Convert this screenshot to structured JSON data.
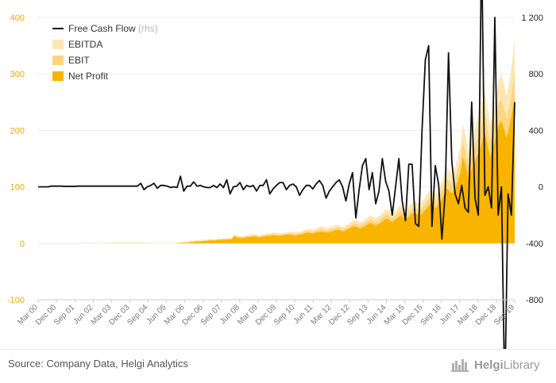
{
  "chart_data": {
    "type": "area",
    "left_axis": {
      "ylim": [
        -100,
        400
      ],
      "ticks": [
        "-100",
        "0",
        "100",
        "200",
        "300",
        "400"
      ]
    },
    "right_axis": {
      "ylim": [
        -800,
        1200
      ],
      "ticks": [
        "-800",
        "-400",
        "0",
        "400",
        "800",
        "1 200"
      ]
    },
    "x_tick_labels": [
      "Mar 00",
      "Dec 00",
      "Sep 01",
      "Jun 02",
      "Mar 03",
      "Dec 03",
      "Sep 04",
      "Jun 05",
      "Mar 06",
      "Dec 06",
      "Sep 07",
      "Jun 08",
      "Mar 09",
      "Dec 09",
      "Sep 10",
      "Jun 11",
      "Mar 12",
      "Dec 12",
      "Sep 13",
      "Jun 14",
      "Mar 15",
      "Dec 15",
      "Sep 16",
      "Jun 17",
      "Mar 18",
      "Dec 18",
      "Sep 19"
    ],
    "legend": [
      {
        "label": "Free Cash Flow",
        "suffix": "(rhs)",
        "type": "line",
        "color": "#111111"
      },
      {
        "label": "EBITDA",
        "type": "area",
        "color": "#fde7b4"
      },
      {
        "label": "EBIT",
        "type": "area",
        "color": "#fcd67f"
      },
      {
        "label": "Net Profit",
        "type": "area",
        "color": "#f9b400"
      }
    ],
    "series": [
      {
        "name": "Free Cash Flow",
        "axis": "right",
        "values": [
          0,
          0,
          0,
          0,
          5,
          5,
          5,
          5,
          3,
          3,
          3,
          3,
          5,
          5,
          5,
          5,
          5,
          5,
          5,
          5,
          5,
          5,
          5,
          5,
          5,
          5,
          5,
          5,
          5,
          5,
          5,
          25,
          -20,
          0,
          10,
          25,
          -10,
          10,
          10,
          5,
          -5,
          0,
          -5,
          75,
          -30,
          5,
          5,
          35,
          5,
          10,
          0,
          -5,
          -5,
          10,
          -5,
          20,
          -5,
          50,
          -50,
          0,
          5,
          30,
          -20,
          10,
          0,
          10,
          -30,
          10,
          10,
          50,
          -50,
          -15,
          10,
          30,
          30,
          -20,
          10,
          20,
          0,
          -60,
          -20,
          10,
          10,
          -15,
          20,
          45,
          10,
          -80,
          -30,
          0,
          30,
          50,
          0,
          -100,
          20,
          100,
          -220,
          -20,
          150,
          200,
          -20,
          100,
          -120,
          -30,
          200,
          40,
          -30,
          -200,
          0,
          200,
          -100,
          -240,
          160,
          160,
          -260,
          -280,
          400,
          900,
          1000,
          -280,
          150,
          20,
          -370,
          -40,
          950,
          180,
          -50,
          -120,
          10,
          -150,
          -180,
          600,
          -80,
          -200,
          1700,
          -60,
          0,
          -150,
          1200,
          -200,
          0,
          -1500,
          -50,
          -200,
          600
        ]
      },
      {
        "name": "EBITDA",
        "axis": "left",
        "values": [
          0,
          0,
          0,
          0,
          0,
          0,
          0,
          0,
          0,
          0,
          0,
          0,
          0,
          0,
          0,
          0,
          0,
          0,
          1,
          1,
          1,
          1,
          1,
          1,
          1,
          1,
          1,
          2,
          2,
          2,
          2,
          2,
          2,
          2,
          2,
          2,
          2,
          2,
          2,
          2,
          1,
          1,
          1,
          1,
          1,
          1,
          1,
          1,
          1,
          1,
          1,
          1,
          2,
          2,
          3,
          3,
          4,
          5,
          5,
          6,
          6,
          6,
          6,
          8,
          7,
          7,
          8,
          8,
          9,
          9,
          9,
          9,
          16,
          14,
          13,
          12,
          13,
          14,
          15,
          16,
          16,
          14,
          15,
          16,
          17,
          18,
          19,
          19,
          18,
          18,
          18,
          19,
          20,
          20,
          19,
          19,
          20,
          22,
          24,
          26,
          25,
          24,
          26,
          28,
          30,
          29,
          27,
          28,
          30,
          32,
          33,
          31,
          29,
          32,
          35,
          38,
          41,
          40,
          37,
          38,
          42,
          46,
          50,
          47,
          44,
          47,
          52,
          57,
          61,
          56,
          51,
          56,
          62,
          68,
          63,
          60,
          65,
          70,
          75,
          72,
          68,
          74,
          80,
          88,
          95,
          90,
          86,
          95,
          105,
          118,
          135,
          128,
          122,
          132,
          150,
          170,
          210,
          190,
          160,
          175,
          195,
          215,
          225,
          245,
          270,
          240,
          210,
          225,
          255,
          285,
          300,
          285,
          260,
          285,
          320,
          360
        ]
      },
      {
        "name": "EBIT",
        "axis": "left",
        "values": [
          0,
          0,
          0,
          0,
          0,
          0,
          0,
          0,
          0,
          0,
          0,
          0,
          0,
          0,
          0,
          0,
          0,
          0,
          0,
          0,
          0,
          0,
          0,
          0,
          0,
          0,
          0,
          0,
          0,
          0,
          0,
          0,
          0,
          0,
          0,
          0,
          0,
          0,
          0,
          0,
          0,
          0,
          0,
          0,
          0,
          0,
          0,
          0,
          0,
          0,
          0,
          0,
          1,
          1,
          2,
          2,
          3,
          3,
          4,
          4,
          4,
          5,
          5,
          6,
          6,
          6,
          7,
          7,
          8,
          8,
          8,
          8,
          14,
          12,
          11,
          11,
          12,
          13,
          13,
          14,
          14,
          12,
          13,
          14,
          15,
          16,
          16,
          16,
          15,
          16,
          16,
          17,
          18,
          18,
          17,
          17,
          18,
          19,
          21,
          22,
          21,
          20,
          22,
          24,
          25,
          24,
          23,
          24,
          25,
          27,
          28,
          27,
          25,
          27,
          30,
          32,
          35,
          34,
          31,
          33,
          36,
          39,
          42,
          40,
          37,
          40,
          44,
          48,
          52,
          48,
          44,
          48,
          53,
          58,
          54,
          51,
          55,
          60,
          64,
          61,
          58,
          63,
          68,
          75,
          81,
          77,
          73,
          81,
          90,
          100,
          115,
          109,
          104,
          112,
          128,
          145,
          180,
          160,
          135,
          150,
          165,
          180,
          190,
          210,
          230,
          205,
          180,
          195,
          220,
          245,
          255,
          240,
          220,
          240,
          270,
          305
        ]
      },
      {
        "name": "Net Profit",
        "axis": "left",
        "values": [
          0,
          0,
          0,
          0,
          0,
          0,
          0,
          0,
          0,
          0,
          0,
          0,
          0,
          0,
          0,
          0,
          0,
          0,
          0,
          0,
          0,
          0,
          0,
          0,
          0,
          0,
          0,
          0,
          0,
          0,
          0,
          0,
          0,
          0,
          0,
          0,
          0,
          0,
          0,
          0,
          0,
          0,
          0,
          0,
          0,
          0,
          0,
          0,
          0,
          0,
          0,
          0,
          1,
          1,
          1,
          1,
          2,
          2,
          3,
          3,
          3,
          4,
          4,
          5,
          5,
          5,
          6,
          6,
          6,
          6,
          7,
          7,
          12,
          10,
          9,
          9,
          10,
          11,
          11,
          12,
          12,
          10,
          11,
          12,
          13,
          13,
          14,
          14,
          13,
          13,
          14,
          15,
          15,
          15,
          14,
          14,
          15,
          16,
          18,
          19,
          18,
          17,
          19,
          20,
          21,
          20,
          19,
          20,
          21,
          23,
          24,
          23,
          21,
          23,
          26,
          28,
          30,
          29,
          26,
          28,
          31,
          33,
          36,
          34,
          31,
          34,
          37,
          41,
          44,
          41,
          37,
          41,
          45,
          49,
          46,
          43,
          47,
          51,
          54,
          52,
          49,
          53,
          58,
          64,
          69,
          65,
          62,
          69,
          76,
          85,
          98,
          93,
          88,
          95,
          109,
          123,
          153,
          136,
          115,
          128,
          140,
          153,
          162,
          179,
          196,
          174,
          153,
          166,
          187,
          208,
          217,
          204,
          187,
          204,
          230,
          260
        ]
      }
    ]
  },
  "source": "Source: Company Data, Helgi Analytics",
  "logo": {
    "text_bold": "Helgi",
    "text_light": "Library"
  }
}
